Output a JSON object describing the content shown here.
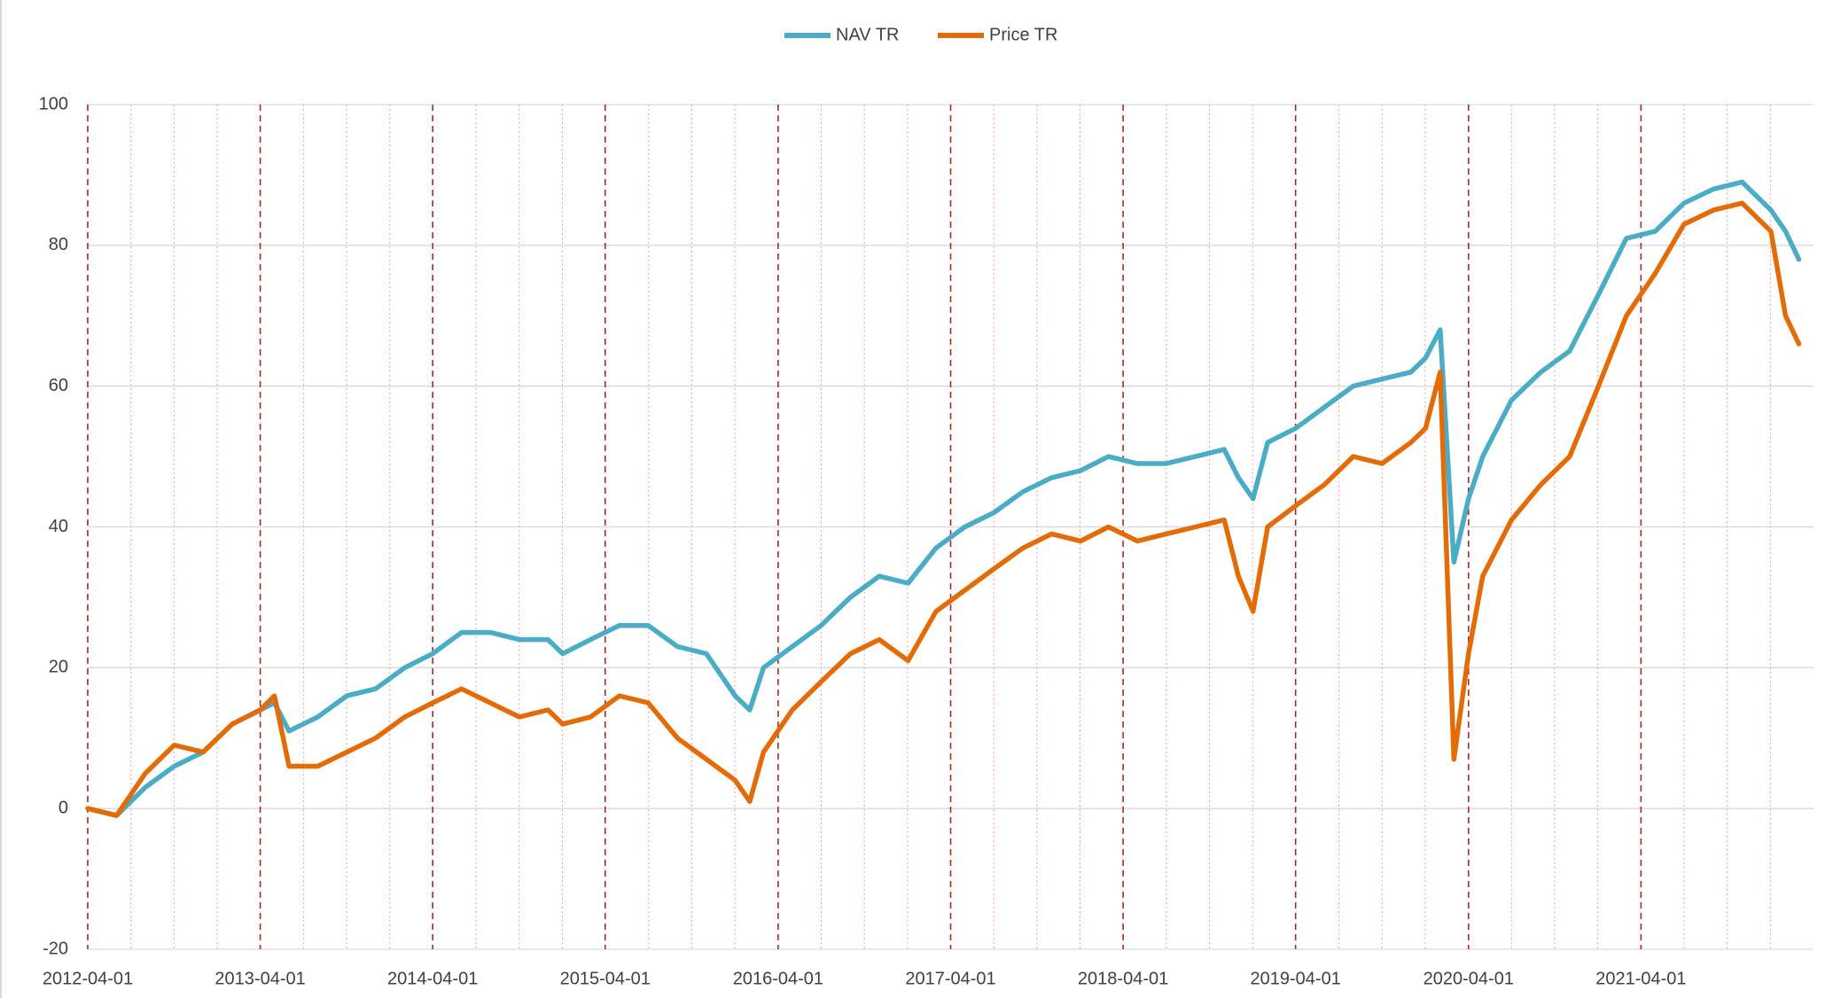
{
  "chart_data": {
    "type": "line",
    "x": [
      "2012-04-01",
      "2012-06-01",
      "2012-08-01",
      "2012-10-01",
      "2012-12-01",
      "2013-02-01",
      "2013-04-01",
      "2013-05-01",
      "2013-06-01",
      "2013-08-01",
      "2013-10-01",
      "2013-12-01",
      "2014-02-01",
      "2014-04-01",
      "2014-06-01",
      "2014-08-01",
      "2014-10-01",
      "2014-12-01",
      "2015-01-01",
      "2015-03-01",
      "2015-05-01",
      "2015-07-01",
      "2015-09-01",
      "2015-11-01",
      "2016-01-01",
      "2016-02-01",
      "2016-03-01",
      "2016-05-01",
      "2016-07-01",
      "2016-09-01",
      "2016-11-01",
      "2017-01-01",
      "2017-03-01",
      "2017-05-01",
      "2017-07-01",
      "2017-09-01",
      "2017-11-01",
      "2018-01-01",
      "2018-03-01",
      "2018-05-01",
      "2018-07-01",
      "2018-09-01",
      "2018-11-01",
      "2018-12-01",
      "2019-01-01",
      "2019-02-01",
      "2019-04-01",
      "2019-06-01",
      "2019-08-01",
      "2019-10-01",
      "2019-12-01",
      "2020-01-01",
      "2020-02-01",
      "2020-03-01",
      "2020-04-01",
      "2020-05-01",
      "2020-07-01",
      "2020-09-01",
      "2020-11-01",
      "2021-01-01",
      "2021-03-01",
      "2021-05-01",
      "2021-07-01",
      "2021-09-01",
      "2021-11-01",
      "2022-01-01",
      "2022-02-01",
      "2022-03-01"
    ],
    "series": [
      {
        "name": "NAV TR",
        "color": "#4bacc6",
        "values": [
          0,
          -1,
          3,
          6,
          8,
          12,
          14,
          15,
          11,
          13,
          16,
          17,
          20,
          22,
          25,
          25,
          24,
          24,
          22,
          24,
          26,
          26,
          23,
          22,
          16,
          14,
          20,
          23,
          26,
          30,
          33,
          32,
          37,
          40,
          42,
          45,
          47,
          48,
          50,
          49,
          49,
          50,
          51,
          47,
          44,
          52,
          54,
          57,
          60,
          61,
          62,
          64,
          68,
          35,
          44,
          50,
          58,
          62,
          65,
          73,
          81,
          82,
          86,
          88,
          89,
          85,
          82,
          78
        ]
      },
      {
        "name": "Price TR",
        "color": "#e36c09",
        "values": [
          0,
          -1,
          5,
          9,
          8,
          12,
          14,
          16,
          6,
          6,
          8,
          10,
          13,
          15,
          17,
          15,
          13,
          14,
          12,
          13,
          16,
          15,
          10,
          7,
          4,
          1,
          8,
          14,
          18,
          22,
          24,
          21,
          28,
          31,
          34,
          37,
          39,
          38,
          40,
          38,
          39,
          40,
          41,
          33,
          28,
          40,
          43,
          46,
          50,
          49,
          52,
          54,
          62,
          7,
          22,
          33,
          41,
          46,
          50,
          60,
          70,
          76,
          83,
          85,
          86,
          82,
          70,
          66
        ]
      }
    ],
    "xlim": [
      "2012-04-01",
      "2022-04-01"
    ],
    "xticks": [
      "2012-04-01",
      "2013-04-01",
      "2014-04-01",
      "2015-04-01",
      "2016-04-01",
      "2017-04-01",
      "2018-04-01",
      "2019-04-01",
      "2020-04-01",
      "2021-04-01"
    ],
    "ylim": [
      -20,
      100
    ],
    "yticks": [
      -20,
      0,
      20,
      40,
      60,
      80,
      100
    ],
    "grid": true,
    "legend": "top"
  }
}
